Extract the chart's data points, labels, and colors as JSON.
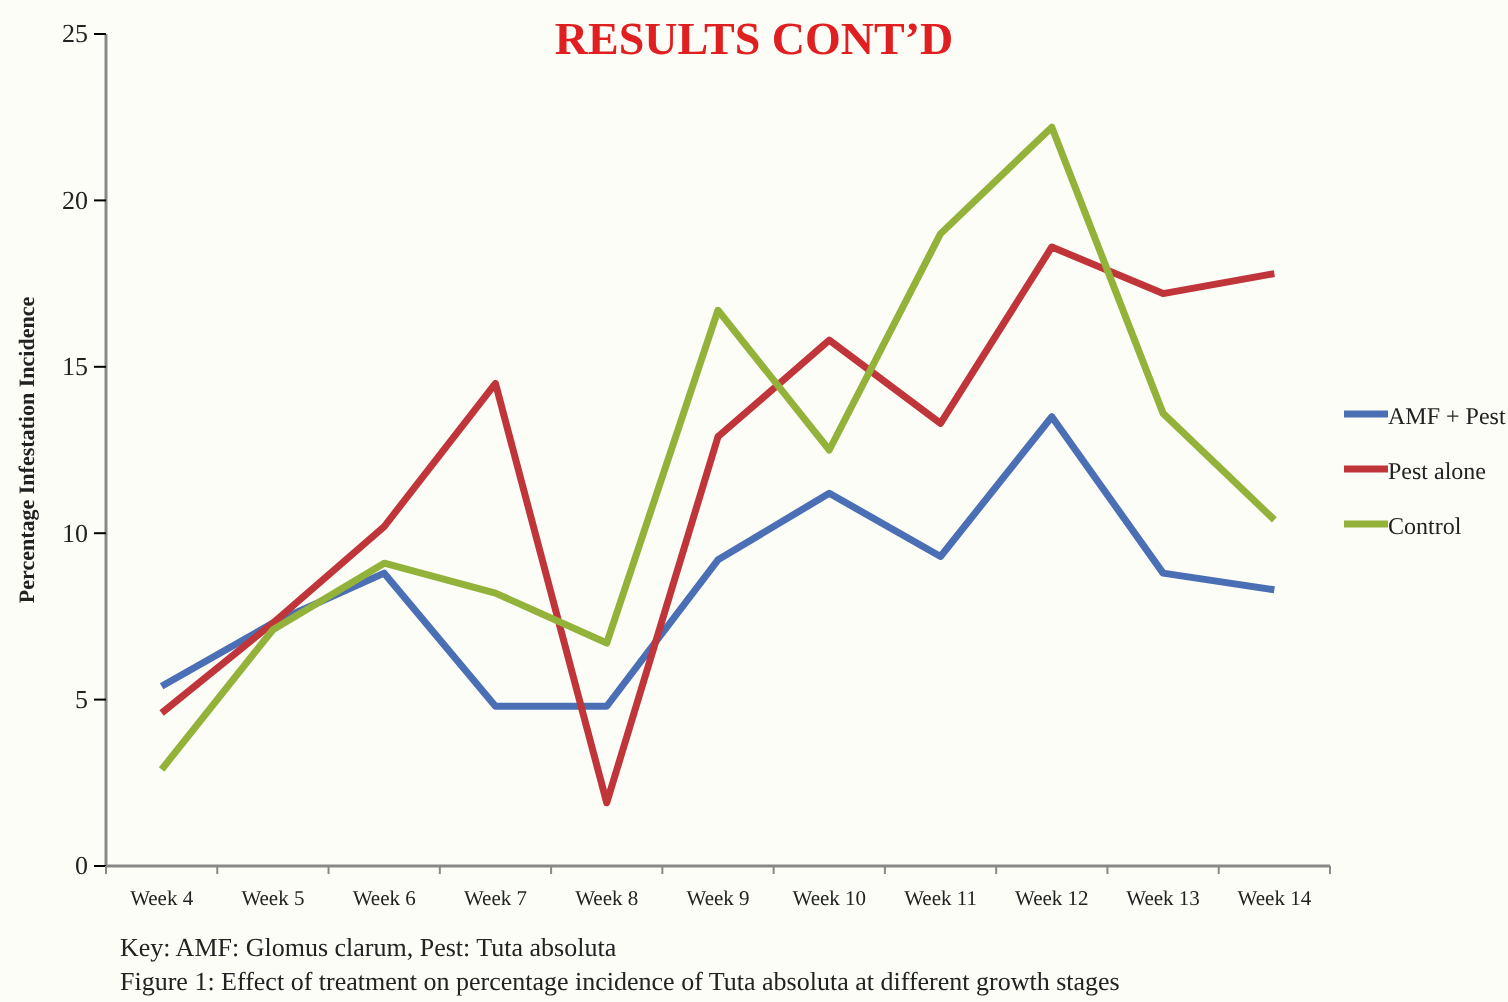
{
  "chart_data": {
    "type": "line",
    "title": "RESULTS CONT’D",
    "ylabel": "Percentage Infestation Incidence",
    "categories": [
      "Week 4",
      "Week 5",
      "Week 6",
      "Week 7",
      "Week 8",
      "Week 9",
      "Week 10",
      "Week 11",
      "Week 12",
      "Week 13",
      "Week 14"
    ],
    "series": [
      {
        "name": "AMF + Pest",
        "color": "#4a6fb5",
        "values": [
          5.4,
          7.3,
          8.8,
          4.8,
          4.8,
          9.2,
          11.2,
          9.3,
          13.5,
          8.8,
          8.3
        ]
      },
      {
        "name": "Pest alone",
        "color": "#c0353a",
        "values": [
          4.6,
          7.3,
          10.2,
          14.5,
          1.9,
          12.9,
          15.8,
          13.3,
          18.6,
          17.2,
          17.8
        ]
      },
      {
        "name": "Control",
        "color": "#92b23a",
        "values": [
          2.9,
          7.1,
          9.1,
          8.2,
          6.7,
          16.7,
          12.5,
          19.0,
          22.2,
          13.6,
          10.4
        ]
      }
    ],
    "ylim": [
      0,
      25
    ],
    "yticks": [
      0,
      5,
      10,
      15,
      20,
      25
    ],
    "grid": false,
    "legend": "right",
    "marker": "none",
    "line_style": "solid",
    "annotations": [
      "Key: AMF: Glomus clarum, Pest: Tuta absoluta",
      "Figure 1: Effect of treatment on percentage incidence of Tuta absoluta at different growth stages"
    ]
  }
}
